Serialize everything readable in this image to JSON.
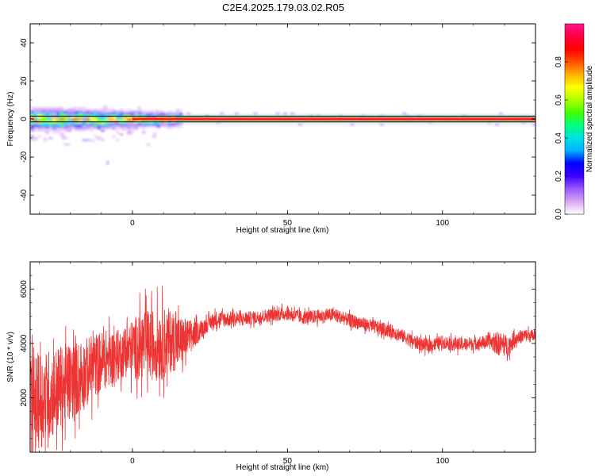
{
  "title": "C2E4.2025.179.03.02.R05",
  "colorbar": {
    "label": "Normalized spectral amplitude",
    "ticks": [
      "0.0",
      "0.2",
      "0.4",
      "0.6",
      "0.8"
    ],
    "range": [
      0,
      1
    ],
    "colors": [
      "#ffffff",
      "#d9a6f2",
      "#9b59ff",
      "#3b00ff",
      "#0000ff",
      "#00b0ff",
      "#00e0e0",
      "#00ff7f",
      "#40ff00",
      "#b0ff00",
      "#ffff00",
      "#ffb000",
      "#ff5000",
      "#ff0000",
      "#ff0040",
      "#ff1493"
    ]
  },
  "chart_data": [
    {
      "type": "heatmap",
      "title": "",
      "xlabel": "Height of straight line (km)",
      "ylabel": "Frequency (Hz)",
      "xlim": [
        -33,
        130
      ],
      "ylim": [
        -50,
        50
      ],
      "xticks": [
        "0",
        "50",
        "100"
      ],
      "yticks": [
        "40",
        "20",
        "0",
        "-20",
        "-40"
      ],
      "reference_lines_y": [
        -1.5,
        1.5
      ],
      "description_values": {
        "dominant_frequency": 0,
        "high_amplitude_band_x": [
          0,
          130
        ],
        "noisy_region_x": [
          -33,
          15
        ],
        "outlier_point": {
          "x": -8,
          "y": -23
        }
      }
    },
    {
      "type": "line",
      "title": "",
      "xlabel": "Height of straight line (km)",
      "ylabel": "SNR (10 * v/v)",
      "xlim": [
        -33,
        130
      ],
      "ylim": [
        0,
        7000
      ],
      "xticks": [
        "0",
        "50",
        "100"
      ],
      "yticks": [
        "2000",
        "4000",
        "6000"
      ],
      "line_color": "#ee3333",
      "series": [
        {
          "x": [
            -33,
            -30,
            -27,
            -24,
            -21,
            -18,
            -15,
            -12,
            -9,
            -6,
            -3,
            0,
            3,
            6,
            9,
            12,
            15,
            18,
            21,
            24,
            27,
            30,
            35,
            40,
            45,
            50,
            55,
            60,
            65,
            70,
            75,
            80,
            85,
            90,
            95,
            100,
            105,
            110,
            115,
            118,
            121,
            124,
            127,
            130
          ],
          "values": [
            1700,
            1900,
            2100,
            2300,
            2500,
            2700,
            2900,
            3200,
            3400,
            3500,
            3650,
            3800,
            3950,
            3950,
            4000,
            4100,
            4050,
            4200,
            4400,
            4700,
            4900,
            4900,
            4900,
            4950,
            5050,
            5100,
            4950,
            5000,
            5050,
            4850,
            4700,
            4550,
            4400,
            4100,
            3900,
            4050,
            3950,
            4000,
            4050,
            4000,
            3900,
            4200,
            4300,
            4250
          ],
          "amplitude": [
            1800,
            1800,
            1700,
            1600,
            1500,
            1400,
            1300,
            1200,
            1100,
            1000,
            900,
            1100,
            1300,
            1300,
            1400,
            1200,
            1000,
            700,
            400,
            300,
            300,
            300,
            250,
            250,
            250,
            250,
            250,
            250,
            250,
            250,
            250,
            250,
            250,
            250,
            250,
            250,
            250,
            250,
            250,
            450,
            400,
            250,
            250,
            250
          ]
        }
      ]
    }
  ]
}
